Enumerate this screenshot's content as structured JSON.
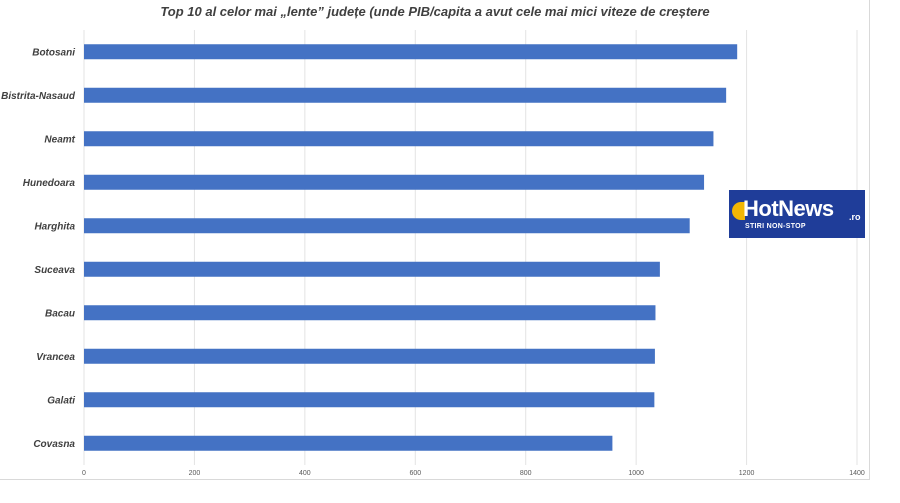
{
  "chart_data": {
    "type": "bar",
    "orientation": "horizontal",
    "title": "Top 10 al celor mai „lente” județe  (unde PIB/capita a avut cele mai mici viteze de creștere",
    "categories": [
      "Botosani",
      "Bistrita-Nasaud",
      "Neamt",
      "Hunedoara",
      "Harghita",
      "Suceava",
      "Bacau",
      "Vrancea",
      "Galati",
      "Covasna"
    ],
    "values": [
      1183,
      1163,
      1140,
      1123,
      1097,
      1043,
      1035,
      1034,
      1033,
      957
    ],
    "xlim": [
      0,
      1400
    ],
    "xticks": [
      "0",
      "200",
      "400",
      "600",
      "800",
      "1000",
      "1200",
      "1400"
    ],
    "bar_color": "#4472c4",
    "grid": true
  },
  "logo": {
    "main": "HotNews",
    "suffix": ".ro",
    "tagline": "STIRI NON-STOP"
  }
}
